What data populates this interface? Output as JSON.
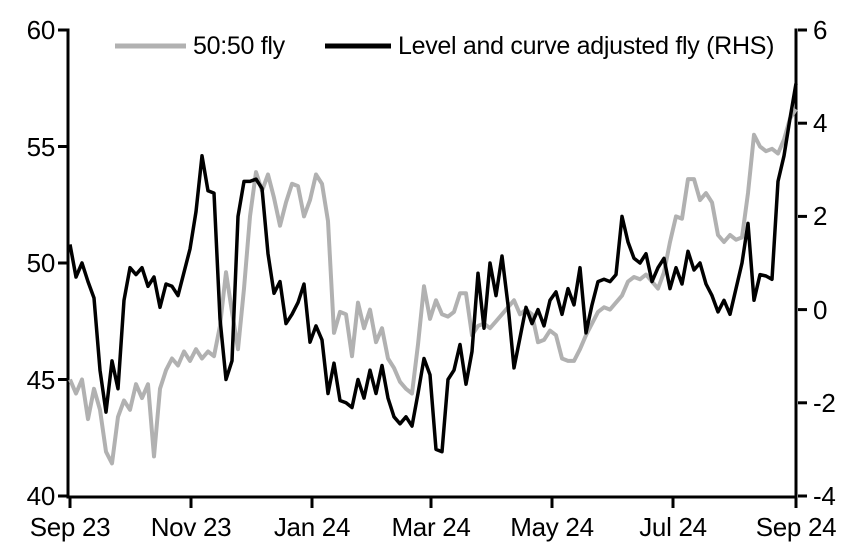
{
  "chart_data": {
    "type": "line",
    "title": "",
    "x_ticks": [
      "Sep 23",
      "Nov 23",
      "Jan 24",
      "Mar 24",
      "May 24",
      "Jul 24",
      "Sep 24"
    ],
    "y_left": {
      "min": 40,
      "max": 60,
      "ticks": [
        "60",
        "55",
        "50",
        "45",
        "40"
      ]
    },
    "y_right": {
      "min": -4,
      "max": 6,
      "ticks": [
        "6",
        "4",
        "2",
        "0",
        "-2",
        "-4"
      ]
    },
    "legend": [
      {
        "label": "50:50 fly",
        "color": "#b1b1b1"
      },
      {
        "label": "Level and curve adjusted fly (RHS)",
        "color": "#000000"
      }
    ],
    "axes_color": "#000000",
    "background": "#ffffff",
    "series": [
      {
        "name": "50:50 fly",
        "axis": "left",
        "color": "#b1b1b1",
        "width": 4,
        "values": [
          45.0,
          44.4,
          45.0,
          43.3,
          44.6,
          43.7,
          41.9,
          41.4,
          43.4,
          44.1,
          43.7,
          44.8,
          44.2,
          44.8,
          41.7,
          44.6,
          45.4,
          45.9,
          45.6,
          46.2,
          45.8,
          46.3,
          45.9,
          46.2,
          46.0,
          47.3,
          49.6,
          47.9,
          46.3,
          48.9,
          52.0,
          53.9,
          53.1,
          53.8,
          52.8,
          51.6,
          52.6,
          53.4,
          53.3,
          52.0,
          52.7,
          53.8,
          53.4,
          51.8,
          47.0,
          47.9,
          47.8,
          46.0,
          48.3,
          47.2,
          48.0,
          46.6,
          47.2,
          45.9,
          45.5,
          44.9,
          44.6,
          44.4,
          46.5,
          49.0,
          47.6,
          48.4,
          47.8,
          47.7,
          47.9,
          48.7,
          48.7,
          46.9,
          47.3,
          47.4,
          47.2,
          47.5,
          47.8,
          48.1,
          48.4,
          47.8,
          48.0,
          47.8,
          46.6,
          46.7,
          47.1,
          46.9,
          45.9,
          45.8,
          45.8,
          46.3,
          46.9,
          47.4,
          47.9,
          48.1,
          48.0,
          48.3,
          48.6,
          49.2,
          49.4,
          49.3,
          49.5,
          49.2,
          48.9,
          49.6,
          50.9,
          52.0,
          51.9,
          53.6,
          53.6,
          52.7,
          53.0,
          52.6,
          51.2,
          50.9,
          51.2,
          51.0,
          51.1,
          53.0,
          55.5,
          55.0,
          54.8,
          54.9,
          54.7,
          55.3,
          56.2,
          56.6
        ]
      },
      {
        "name": "Level and curve adjusted fly (RHS)",
        "axis": "right",
        "color": "#000000",
        "width": 3.5,
        "values": [
          1.4,
          0.7,
          1.0,
          0.6,
          0.25,
          -1.3,
          -2.2,
          -1.1,
          -1.7,
          0.2,
          0.9,
          0.75,
          0.9,
          0.5,
          0.7,
          0.05,
          0.55,
          0.5,
          0.3,
          0.8,
          1.3,
          2.1,
          3.3,
          2.55,
          2.5,
          -0.2,
          -1.5,
          -1.1,
          2.0,
          2.75,
          2.75,
          2.8,
          2.6,
          1.2,
          0.35,
          0.6,
          -0.3,
          -0.1,
          0.15,
          0.55,
          -0.7,
          -0.35,
          -0.65,
          -1.8,
          -1.15,
          -1.95,
          -2.0,
          -2.1,
          -1.5,
          -1.9,
          -1.3,
          -1.8,
          -1.2,
          -1.9,
          -2.3,
          -2.45,
          -2.3,
          -2.5,
          -1.8,
          -1.05,
          -1.4,
          -3.0,
          -3.05,
          -1.5,
          -1.3,
          -0.75,
          -1.6,
          -0.9,
          0.78,
          -0.4,
          1.0,
          0.3,
          1.15,
          0.1,
          -1.25,
          -0.6,
          0.05,
          -0.3,
          0.0,
          -0.35,
          0.2,
          0.38,
          -0.1,
          0.45,
          0.1,
          0.9,
          -0.5,
          0.1,
          0.6,
          0.65,
          0.6,
          0.75,
          2.0,
          1.45,
          1.1,
          1.0,
          1.2,
          0.6,
          0.9,
          1.1,
          0.45,
          0.9,
          0.55,
          1.25,
          0.85,
          1.0,
          0.55,
          0.3,
          -0.05,
          0.2,
          -0.1,
          0.45,
          1.0,
          1.85,
          0.2,
          0.75,
          0.72,
          0.65,
          2.75,
          3.3,
          4.1,
          4.85
        ]
      }
    ]
  }
}
